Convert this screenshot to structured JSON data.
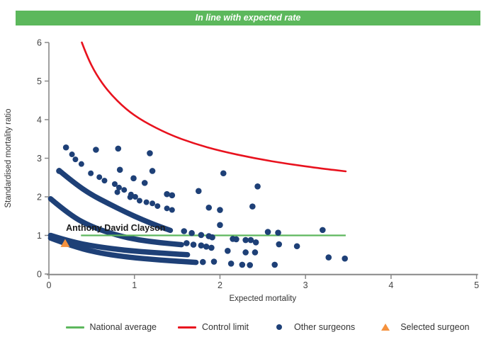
{
  "header": {
    "title": "In line with expected rate",
    "background": "#5cb85c",
    "text_color": "#ffffff"
  },
  "chart_data": {
    "type": "scatter",
    "title": "",
    "xlabel": "Expected mortality",
    "ylabel": "Standardised mortality ratio",
    "xlim": [
      0,
      5
    ],
    "ylim": [
      0,
      6
    ],
    "x_ticks": [
      0,
      1,
      2,
      3,
      4,
      5
    ],
    "y_ticks": [
      0,
      1,
      2,
      3,
      4,
      5,
      6
    ],
    "grid": false,
    "legend_position": "bottom",
    "axis_color": "#888888",
    "tick_label_color": "#444444",
    "national_average": {
      "label": "National average",
      "color": "#5db75d",
      "y": 1.0,
      "x_start": 0.375,
      "x_end": 3.47
    },
    "control_limit": {
      "label": "Control limit",
      "color": "#e8121e",
      "points": [
        [
          0.385,
          6.0
        ],
        [
          0.45,
          5.62
        ],
        [
          0.55,
          5.18
        ],
        [
          0.7,
          4.71
        ],
        [
          0.9,
          4.27
        ],
        [
          1.1,
          3.96
        ],
        [
          1.4,
          3.62
        ],
        [
          1.7,
          3.38
        ],
        [
          2.0,
          3.19
        ],
        [
          2.4,
          3.0
        ],
        [
          2.8,
          2.85
        ],
        [
          3.2,
          2.73
        ],
        [
          3.47,
          2.66
        ]
      ]
    },
    "other_surgeons": {
      "label": "Other surgeons",
      "color": "#1e4077",
      "dense_bands": [
        [
          [
            0.02,
            1.0
          ],
          [
            0.25,
            0.84
          ],
          [
            0.55,
            0.71
          ],
          [
            0.9,
            0.61
          ],
          [
            1.25,
            0.55
          ],
          [
            1.62,
            0.5
          ]
        ],
        [
          [
            0.02,
            0.93
          ],
          [
            0.25,
            0.74
          ],
          [
            0.55,
            0.56
          ],
          [
            0.9,
            0.44
          ],
          [
            1.3,
            0.36
          ],
          [
            1.72,
            0.3
          ]
        ],
        [
          [
            0.02,
            1.95
          ],
          [
            0.25,
            1.52
          ],
          [
            0.5,
            1.22
          ],
          [
            0.8,
            1.0
          ],
          [
            1.05,
            0.88
          ],
          [
            1.3,
            0.81
          ],
          [
            1.55,
            0.76
          ]
        ],
        [
          [
            0.12,
            2.68
          ],
          [
            0.3,
            2.35
          ],
          [
            0.5,
            2.05
          ],
          [
            0.7,
            1.82
          ],
          [
            0.9,
            1.6
          ],
          [
            1.1,
            1.4
          ],
          [
            1.28,
            1.24
          ],
          [
            1.42,
            1.13
          ]
        ]
      ],
      "dotted_sequences": [
        [
          [
            0.27,
            3.1
          ],
          [
            0.31,
            2.97
          ],
          [
            0.38,
            2.85
          ],
          [
            0.49,
            2.61
          ],
          [
            0.59,
            2.51
          ],
          [
            0.65,
            2.42
          ],
          [
            0.77,
            2.33
          ],
          [
            0.82,
            2.24
          ],
          [
            0.88,
            2.18
          ],
          [
            0.96,
            2.06
          ],
          [
            1.01,
            2.0
          ]
        ],
        [
          [
            0.8,
            2.12
          ],
          [
            0.95,
            1.99
          ],
          [
            1.06,
            1.9
          ],
          [
            1.14,
            1.86
          ],
          [
            1.21,
            1.83
          ],
          [
            1.27,
            1.76
          ],
          [
            1.38,
            1.7
          ],
          [
            1.44,
            1.66
          ]
        ]
      ],
      "points": [
        [
          0.2,
          3.28
        ],
        [
          0.55,
          3.22
        ],
        [
          0.81,
          3.25
        ],
        [
          1.18,
          3.13
        ],
        [
          0.12,
          2.67
        ],
        [
          0.83,
          2.7
        ],
        [
          1.21,
          2.67
        ],
        [
          0.99,
          2.48
        ],
        [
          1.12,
          2.36
        ],
        [
          1.38,
          2.07
        ],
        [
          1.44,
          2.04
        ],
        [
          1.75,
          2.15
        ],
        [
          2.04,
          2.61
        ],
        [
          2.44,
          2.27
        ],
        [
          2.38,
          1.75
        ],
        [
          1.87,
          1.72
        ],
        [
          2.0,
          1.66
        ],
        [
          1.58,
          1.11
        ],
        [
          1.67,
          1.06
        ],
        [
          1.78,
          1.01
        ],
        [
          1.87,
          0.98
        ],
        [
          1.61,
          0.8
        ],
        [
          1.69,
          0.76
        ],
        [
          1.78,
          0.74
        ],
        [
          1.84,
          0.71
        ],
        [
          1.9,
          0.68
        ],
        [
          2.0,
          1.27
        ],
        [
          2.56,
          1.09
        ],
        [
          2.68,
          1.07
        ],
        [
          3.2,
          1.14
        ],
        [
          1.91,
          0.95
        ],
        [
          2.15,
          0.91
        ],
        [
          2.19,
          0.9
        ],
        [
          2.3,
          0.88
        ],
        [
          2.36,
          0.88
        ],
        [
          2.42,
          0.82
        ],
        [
          2.69,
          0.77
        ],
        [
          2.9,
          0.72
        ],
        [
          2.09,
          0.6
        ],
        [
          2.3,
          0.56
        ],
        [
          2.41,
          0.56
        ],
        [
          3.27,
          0.43
        ],
        [
          3.46,
          0.4
        ],
        [
          1.8,
          0.31
        ],
        [
          1.93,
          0.32
        ],
        [
          2.13,
          0.27
        ],
        [
          2.26,
          0.24
        ],
        [
          2.35,
          0.23
        ],
        [
          2.64,
          0.24
        ]
      ]
    },
    "selected_surgeon": {
      "label": "Selected surgeon",
      "color": "#f5923e",
      "name": "Anthony David Clayson",
      "x": 0.19,
      "y": 0.8
    },
    "annotation": {
      "text": "Anthony David Clayson",
      "x": 0.2,
      "y": 1.19,
      "color": "#1a1a1a"
    }
  },
  "legend": {
    "items": [
      {
        "label": "National average",
        "type": "line",
        "color": "#5db75d"
      },
      {
        "label": "Control limit",
        "type": "line",
        "color": "#e8121e"
      },
      {
        "label": "Other surgeons",
        "type": "dot",
        "color": "#1e4077"
      },
      {
        "label": "Selected surgeon",
        "type": "triangle",
        "color": "#f5923e"
      }
    ]
  }
}
